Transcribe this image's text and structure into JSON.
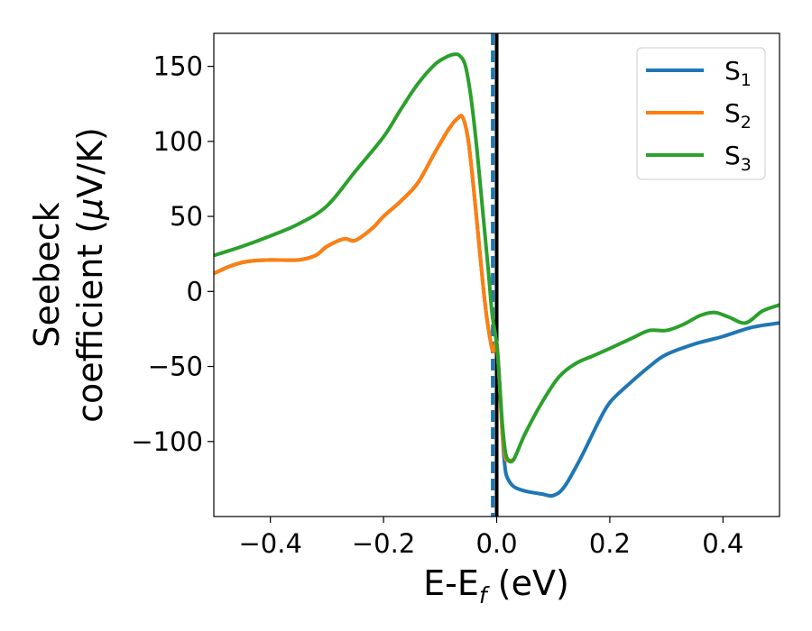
{
  "chart_data": {
    "type": "line",
    "xlabel": {
      "main": "E-E",
      "sub": "f",
      "unit": " (eV)"
    },
    "ylabel": {
      "line1": "Seebeck",
      "line2": "coefficient  (",
      "mu": "μ",
      "line2_end": "V/K)"
    },
    "xlim": [
      -0.5,
      0.5
    ],
    "ylim": [
      -150,
      172
    ],
    "xticks": [
      -0.4,
      -0.2,
      0.0,
      0.2,
      0.4
    ],
    "xtick_labels": [
      "−0.4",
      "−0.2",
      "0.0",
      "0.2",
      "0.4"
    ],
    "yticks": [
      150,
      100,
      50,
      0,
      -50,
      -100
    ],
    "ytick_labels": [
      "150",
      "100",
      "50",
      "0",
      "−50",
      "−100"
    ],
    "grid": false,
    "legend_position": "top-right",
    "vlines": [
      {
        "x": -0.007,
        "color": "#1f77b4",
        "style": "dashed"
      },
      {
        "x": 0.0,
        "color": "#000000",
        "style": "solid"
      }
    ],
    "series": [
      {
        "name": "S",
        "sub": "1",
        "color": "#1f77b4",
        "x": [
          -0.5,
          -0.47,
          -0.44,
          -0.4,
          -0.35,
          -0.32,
          -0.3,
          -0.27,
          -0.25,
          -0.22,
          -0.2,
          -0.17,
          -0.14,
          -0.11,
          -0.085,
          -0.07,
          -0.06,
          -0.05,
          -0.04,
          -0.03,
          -0.02,
          -0.01,
          -0.005,
          0.0,
          0.005,
          0.01,
          0.015,
          0.02,
          0.03,
          0.05,
          0.08,
          0.1,
          0.12,
          0.15,
          0.18,
          0.2,
          0.23,
          0.27,
          0.3,
          0.35,
          0.4,
          0.45,
          0.5
        ],
        "y": [
          12,
          17,
          20,
          21,
          21,
          24,
          30,
          35,
          34,
          42,
          50,
          60,
          72,
          92,
          108,
          115,
          116,
          100,
          66,
          27,
          -10,
          -35,
          -40,
          -34,
          -60,
          -95,
          -118,
          -125,
          -130,
          -133,
          -135,
          -136,
          -130,
          -110,
          -87,
          -74,
          -63,
          -50,
          -42,
          -35,
          -30,
          -24,
          -21
        ]
      },
      {
        "name": "S",
        "sub": "2",
        "color": "#ff7f0e",
        "x": [
          -0.5,
          -0.47,
          -0.44,
          -0.4,
          -0.35,
          -0.32,
          -0.3,
          -0.27,
          -0.25,
          -0.22,
          -0.2,
          -0.17,
          -0.14,
          -0.11,
          -0.085,
          -0.07,
          -0.06,
          -0.05,
          -0.04,
          -0.03,
          -0.02,
          -0.01,
          -0.005,
          0.0,
          0.005,
          0.01,
          0.015,
          0.02,
          0.03
        ],
        "y": [
          12,
          17,
          20,
          21,
          21,
          24,
          30,
          35,
          34,
          42,
          50,
          60,
          72,
          92,
          108,
          115,
          116,
          100,
          66,
          27,
          -10,
          -35,
          -40,
          -34,
          -60,
          -95,
          -110,
          -113,
          -112
        ]
      },
      {
        "name": "S",
        "sub": "3",
        "color": "#2ca02c",
        "x": [
          -0.5,
          -0.45,
          -0.4,
          -0.35,
          -0.3,
          -0.25,
          -0.2,
          -0.17,
          -0.14,
          -0.11,
          -0.09,
          -0.075,
          -0.065,
          -0.055,
          -0.045,
          -0.035,
          -0.025,
          -0.015,
          -0.008,
          0.0,
          0.005,
          0.01,
          0.015,
          0.02,
          0.03,
          0.05,
          0.08,
          0.11,
          0.14,
          0.17,
          0.2,
          0.24,
          0.27,
          0.3,
          0.33,
          0.36,
          0.385,
          0.41,
          0.44,
          0.47,
          0.5
        ],
        "y": [
          24,
          30,
          37,
          45,
          57,
          80,
          103,
          121,
          138,
          151,
          156,
          158,
          157,
          150,
          128,
          95,
          55,
          15,
          -15,
          -35,
          -60,
          -88,
          -106,
          -112,
          -112,
          -95,
          -74,
          -57,
          -48,
          -43,
          -38,
          -31,
          -26,
          -26,
          -22,
          -16,
          -14,
          -17,
          -21,
          -13,
          -9
        ]
      }
    ]
  }
}
